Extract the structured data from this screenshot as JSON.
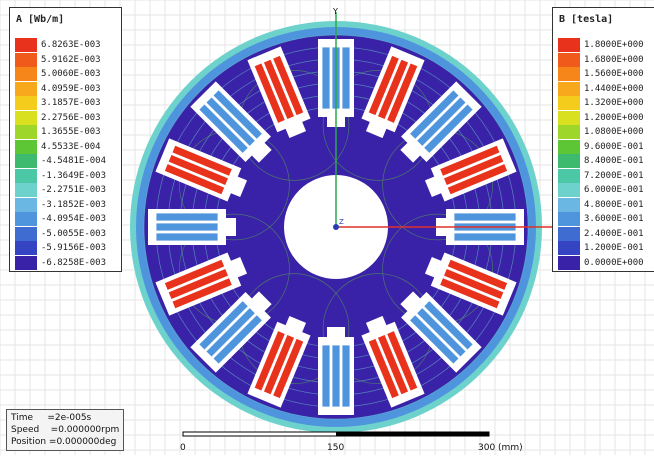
{
  "legend_a": {
    "title": "A [Wb/m]",
    "entries": [
      {
        "label": "6.8263E-003",
        "color": "#e8321c"
      },
      {
        "label": "5.9162E-003",
        "color": "#f05a1a"
      },
      {
        "label": "5.0060E-003",
        "color": "#f6851a"
      },
      {
        "label": "4.0959E-003",
        "color": "#f8a81c"
      },
      {
        "label": "3.1857E-003",
        "color": "#f4cc1c"
      },
      {
        "label": "2.2756E-003",
        "color": "#d8e020"
      },
      {
        "label": "1.3655E-003",
        "color": "#9fd62a"
      },
      {
        "label": "4.5533E-004",
        "color": "#5cc634"
      },
      {
        "label": "-4.5481E-004",
        "color": "#3eba6e"
      },
      {
        "label": "-1.3649E-003",
        "color": "#4cc8a6"
      },
      {
        "label": "-2.2751E-003",
        "color": "#6ed2cc"
      },
      {
        "label": "-3.1852E-003",
        "color": "#69b7e2"
      },
      {
        "label": "-4.0954E-003",
        "color": "#4f95dd"
      },
      {
        "label": "-5.0055E-003",
        "color": "#3f6cd0"
      },
      {
        "label": "-5.9156E-003",
        "color": "#3444c2"
      },
      {
        "label": "-6.8258E-003",
        "color": "#3a22a8"
      }
    ]
  },
  "legend_b": {
    "title": "B [tesla]",
    "entries": [
      {
        "label": "1.8000E+000",
        "color": "#e8321c"
      },
      {
        "label": "1.6800E+000",
        "color": "#f05a1a"
      },
      {
        "label": "1.5600E+000",
        "color": "#f6851a"
      },
      {
        "label": "1.4400E+000",
        "color": "#f8a81c"
      },
      {
        "label": "1.3200E+000",
        "color": "#f4cc1c"
      },
      {
        "label": "1.2000E+000",
        "color": "#d8e020"
      },
      {
        "label": "1.0800E+000",
        "color": "#9fd62a"
      },
      {
        "label": "9.6000E-001",
        "color": "#5cc634"
      },
      {
        "label": "8.4000E-001",
        "color": "#3eba6e"
      },
      {
        "label": "7.2000E-001",
        "color": "#4cc8a6"
      },
      {
        "label": "6.0000E-001",
        "color": "#6ed2cc"
      },
      {
        "label": "4.8000E-001",
        "color": "#69b7e2"
      },
      {
        "label": "3.6000E-001",
        "color": "#4f95dd"
      },
      {
        "label": "2.4000E-001",
        "color": "#3f6cd0"
      },
      {
        "label": "1.2000E-001",
        "color": "#3444c2"
      },
      {
        "label": "0.0000E+000",
        "color": "#3a22a8"
      }
    ]
  },
  "info": {
    "time": "Time     =2e-005s",
    "speed": "Speed    =0.000000rpm",
    "position": "Position =0.000000deg"
  },
  "scale": {
    "tick_0": "0",
    "tick_1": "150",
    "tick_2": "300 (mm)"
  },
  "axes": {
    "y_label": "Y",
    "z_label": "Z"
  },
  "colors": {
    "background_grid": "#e4e4e4",
    "core": "#3a22a8",
    "hot_coil": "#e8321c",
    "cold_coil": "#4f95dd",
    "x_axis": "#e0302a",
    "y_axis": "#2aa84a"
  }
}
